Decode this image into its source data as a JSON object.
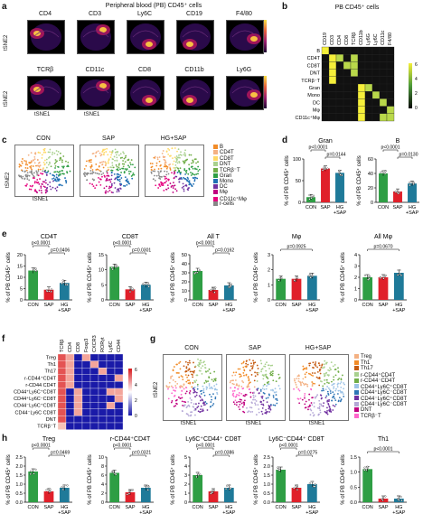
{
  "panel_a": {
    "label": "a",
    "title": "Peripheral blood (PB) CD45⁺ cells",
    "row1": [
      "CD4",
      "CD3",
      "Ly6C",
      "CD19",
      "F4/80"
    ],
    "row2": [
      "TCRβ",
      "CD11c",
      "CD8",
      "CD11b",
      "Ly6G"
    ],
    "axis_y": "tSNE2",
    "axis_x": "tSNE1"
  },
  "panel_b": {
    "label": "b",
    "title": "PB CD45⁺ cells",
    "columns": [
      "CD19",
      "CD3",
      "CD4",
      "CD8",
      "TCRβ",
      "CD11b",
      "Ly6G",
      "Ly6C",
      "CD11c",
      "F4/80"
    ],
    "rows": [
      "B",
      "CD4T",
      "CD8T",
      "DNT",
      "TCRβ⁻T",
      "Gran",
      "Mono",
      "DC",
      "Mφ",
      "CD11c⁺Mφ"
    ],
    "colorbar": [
      "6",
      "4",
      "2",
      "0"
    ]
  },
  "panel_c": {
    "label": "c",
    "conditions": [
      "CON",
      "SAP",
      "HG+SAP"
    ],
    "axis_y": "tSNE2",
    "axis_x": "tSNE1",
    "legend": [
      {
        "name": "B",
        "color": "#f28c28"
      },
      {
        "name": "CD4T",
        "color": "#f4b183"
      },
      {
        "name": "CD8T",
        "color": "#ffd966"
      },
      {
        "name": "DNT",
        "color": "#a9d18e"
      },
      {
        "name": "TCRβ⁻T",
        "color": "#70ad47"
      },
      {
        "name": "Gran",
        "color": "#2e9e44"
      },
      {
        "name": "Mono",
        "color": "#1f6fb4"
      },
      {
        "name": "DC",
        "color": "#7030a0"
      },
      {
        "name": "Mφ",
        "color": "#c00080"
      },
      {
        "name": "CD11c⁺Mφ",
        "color": "#e6007e"
      },
      {
        "name": "r-cells",
        "color": "#888888"
      }
    ]
  },
  "panel_d": {
    "label": "d"
  },
  "panel_e": {
    "label": "e"
  },
  "panel_f": {
    "label": "f",
    "columns": [
      "TCRβ",
      "CD4",
      "CD8",
      "Foxp3",
      "CXCR3",
      "RORγt",
      "Ly6C",
      "CD44"
    ],
    "rows": [
      "Treg",
      "Th1",
      "Th17",
      "r-CD44⁺CD4T",
      "r-CD44 CD4T",
      "CD44⁺Ly6C⁺CD8T",
      "CD44⁺Ly6C⁻CD8T",
      "CD44⁻Ly6C⁺CD8T",
      "CD44⁻Ly6C CD8T",
      "DNT",
      "TCRβ⁻T"
    ],
    "colorbar": [
      "6",
      "4",
      "2",
      "0"
    ]
  },
  "panel_g": {
    "label": "g",
    "conditions": [
      "CON",
      "SAP",
      "HG+SAP"
    ],
    "axis_y": "tSNE2",
    "axis_x": "tSNE1",
    "legend": [
      {
        "name": "Treg",
        "color": "#f4b183"
      },
      {
        "name": "Th1",
        "color": "#f28c28"
      },
      {
        "name": "Th17",
        "color": "#c55a11"
      },
      {
        "name": "r-CD44⁺CD4T",
        "color": "#a9d18e"
      },
      {
        "name": "r-CD44⁻CD4T",
        "color": "#70ad47"
      },
      {
        "name": "CD44⁺Ly6C⁺CD8T",
        "color": "#9dc3e6"
      },
      {
        "name": "CD44⁺Ly6C⁻CD8T",
        "color": "#2e75b6"
      },
      {
        "name": "CD44⁻Ly6C⁺CD8T",
        "color": "#7030a0"
      },
      {
        "name": "CD44⁻Ly6C⁻CD8T",
        "color": "#b4a7d6"
      },
      {
        "name": "DNT",
        "color": "#c00080"
      },
      {
        "name": "TCRβ⁻T",
        "color": "#ff66cc"
      }
    ]
  },
  "panel_h": {
    "label": "h"
  },
  "colors": {
    "con": "#2e9e44",
    "sap": "#e0202a",
    "hgsap": "#1f7a99"
  },
  "chart_data": [
    {
      "type": "bar",
      "panel": "d",
      "title": "Gran",
      "categories": [
        "CON",
        "SAP",
        "HG\n+SAP"
      ],
      "values": [
        12,
        78,
        68
      ],
      "ylim": [
        0,
        100
      ],
      "yticks": [
        "0",
        "50",
        "100"
      ],
      "ylabel": "% of PB CD45⁺ cells",
      "pvalues": [
        "p<0.0001",
        "p=0.0144"
      ]
    },
    {
      "type": "bar",
      "panel": "d",
      "title": "B",
      "categories": [
        "CON",
        "SAP",
        "HG\n+SAP"
      ],
      "values": [
        40,
        15,
        26
      ],
      "ylim": [
        0,
        60
      ],
      "yticks": [
        "0",
        "20",
        "40",
        "60"
      ],
      "ylabel": "% of PB CD45⁺ cells",
      "pvalues": [
        "p<0.0001",
        "p=0.0130"
      ]
    },
    {
      "type": "bar",
      "panel": "e",
      "title": "CD4T",
      "categories": [
        "CON",
        "SAP",
        "HG\n+SAP"
      ],
      "values": [
        13,
        4.5,
        7.5
      ],
      "ylim": [
        0,
        20
      ],
      "yticks": [
        "0",
        "5",
        "10",
        "15",
        "20"
      ],
      "ylabel": "% of PB CD45⁺ cells",
      "pvalues": [
        "p<0.0001",
        "p=0.0406"
      ]
    },
    {
      "type": "bar",
      "panel": "e",
      "title": "CD8T",
      "categories": [
        "CON",
        "SAP",
        "HG\n+SAP"
      ],
      "values": [
        11,
        3.5,
        5
      ],
      "ylim": [
        0,
        15
      ],
      "yticks": [
        "0",
        "5",
        "10",
        "15"
      ],
      "ylabel": "% of PB CD45⁺ cells",
      "pvalues": [
        "p<0.0001",
        "p=0.0301"
      ]
    },
    {
      "type": "bar",
      "panel": "e",
      "title": "All T",
      "categories": [
        "CON",
        "SAP",
        "HG\n+SAP"
      ],
      "values": [
        32,
        11,
        16
      ],
      "ylim": [
        0,
        50
      ],
      "yticks": [
        "0",
        "10",
        "20",
        "30",
        "40",
        "50"
      ],
      "ylabel": "% of PB CD45⁺ cells",
      "pvalues": [
        "p<0.0001",
        "p=0.0162"
      ]
    },
    {
      "type": "bar",
      "panel": "e",
      "title": "Mφ",
      "categories": [
        "CON",
        "SAP",
        "HG\n+SAP"
      ],
      "values": [
        1.4,
        1.4,
        1.6
      ],
      "ylim": [
        0,
        3
      ],
      "yticks": [
        "0",
        "1",
        "2",
        "3"
      ],
      "ylabel": "% of PB CD45⁺ cells",
      "pvalues": [
        "p=0.0925"
      ]
    },
    {
      "type": "bar",
      "panel": "e",
      "title": "All Mφ",
      "categories": [
        "CON",
        "SAP",
        "HG\n+SAP"
      ],
      "values": [
        2.0,
        2.0,
        2.4
      ],
      "ylim": [
        0,
        4
      ],
      "yticks": [
        "0",
        "1",
        "2",
        "3",
        "4"
      ],
      "ylabel": "% of PB CD45⁺ cells",
      "pvalues": [
        "p=0.0670"
      ]
    },
    {
      "type": "bar",
      "panel": "h",
      "title": "Treg",
      "categories": [
        "CON",
        "SAP",
        "HG\n+SAP"
      ],
      "values": [
        1.7,
        0.6,
        0.8
      ],
      "ylim": [
        0,
        2.5
      ],
      "yticks": [
        "0.0",
        "0.5",
        "1.0",
        "1.5",
        "2.0",
        "2.5"
      ],
      "ylabel": "% of PB CD45⁺ cells",
      "pvalues": [
        "p<0.0001",
        "p=0.0469"
      ]
    },
    {
      "type": "bar",
      "panel": "h",
      "title": "r-CD44⁺CD4T",
      "categories": [
        "CON",
        "SAP",
        "HG\n+SAP"
      ],
      "values": [
        6.5,
        2.2,
        3.2
      ],
      "ylim": [
        0,
        10
      ],
      "yticks": [
        "0",
        "2",
        "4",
        "6",
        "8",
        "10"
      ],
      "ylabel": "% of PB CD45⁺ cells",
      "pvalues": [
        "p<0.0001",
        "p=0.0321"
      ]
    },
    {
      "type": "bar",
      "panel": "h",
      "title": "Ly6C⁺CD44⁺ CD8T",
      "categories": [
        "CON",
        "SAP",
        "HG\n+SAP"
      ],
      "values": [
        3.0,
        1.2,
        1.6
      ],
      "ylim": [
        0,
        5
      ],
      "yticks": [
        "0",
        "1",
        "2",
        "3",
        "4",
        "5"
      ],
      "ylabel": "% of PB CD45⁺ cells",
      "pvalues": [
        "p<0.0001",
        "p=0.0386"
      ]
    },
    {
      "type": "bar",
      "panel": "h",
      "title": "Ly6C⁻CD44⁺ CD8T",
      "categories": [
        "CON",
        "SAP",
        "HG\n+SAP"
      ],
      "values": [
        1.8,
        0.8,
        1.0
      ],
      "ylim": [
        0,
        2.5
      ],
      "yticks": [
        "0.0",
        "0.5",
        "1.0",
        "1.5",
        "2.0",
        "2.5"
      ],
      "ylabel": "% of PB CD45⁺ cells",
      "pvalues": [
        "p<0.0001",
        "p=0.0275"
      ]
    },
    {
      "type": "bar",
      "panel": "h",
      "title": "Th1",
      "categories": [
        "CON",
        "SAP",
        "HG\n+SAP"
      ],
      "values": [
        1.1,
        0.12,
        0.12
      ],
      "ylim": [
        0,
        1.5
      ],
      "yticks": [
        "0.0",
        "0.5",
        "1.0",
        "1.5"
      ],
      "ylabel": "% of PB CD45⁺ cells",
      "pvalues": [
        "p<0.0001"
      ]
    }
  ]
}
